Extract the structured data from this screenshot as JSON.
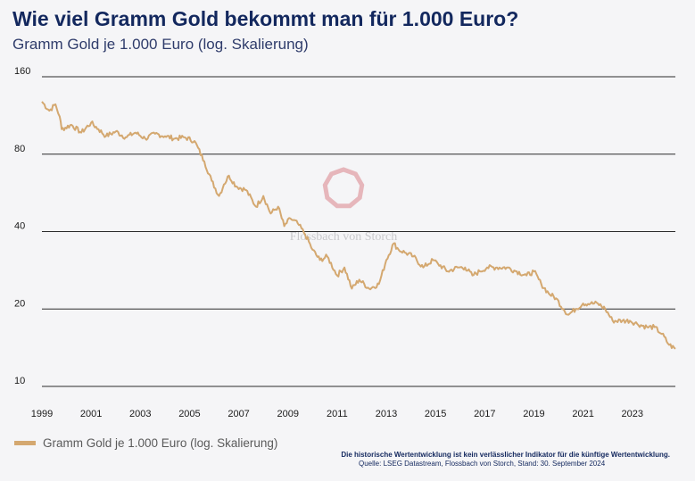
{
  "header": {
    "title": "Wie viel Gramm Gold bekommt man für 1.000 Euro?",
    "subtitle": "Gramm Gold je 1.000 Euro (log. Skalierung)"
  },
  "legend": {
    "label": "Gramm Gold je 1.000 Euro (log. Skalierung)",
    "color": "#d4a870"
  },
  "footer": {
    "note": "Die historische Wertentwicklung ist kein verlässlicher Indikator für die künftige Wertentwicklung.",
    "source": "Quelle: LSEG Datastream, Flossbach von Storch, Stand: 30. September 2024"
  },
  "watermark": {
    "text": "Flossbach von Storch",
    "logo_color": "#e3aab0"
  },
  "chart_data": {
    "type": "line",
    "title": "Wie viel Gramm Gold bekommt man für 1.000 Euro?",
    "subtitle": "Gramm Gold je 1.000 Euro (log. Skalierung)",
    "y_scale": "log",
    "ylim": [
      10,
      160
    ],
    "yticks": [
      10,
      20,
      40,
      80,
      160
    ],
    "xlim": [
      1999.0,
      2024.75
    ],
    "xticks": [
      1999,
      2001,
      2003,
      2005,
      2007,
      2009,
      2011,
      2013,
      2015,
      2017,
      2019,
      2021,
      2023
    ],
    "grid": "horizontal",
    "legend_position": "bottom-left",
    "series": [
      {
        "name": "Gramm Gold je 1.000 Euro (log. Skalierung)",
        "color": "#d4a870",
        "x": [
          1999.0,
          1999.3,
          1999.55,
          1999.72,
          1999.8,
          2000.2,
          2000.6,
          2001.0,
          2001.3,
          2001.6,
          2002.0,
          2002.4,
          2002.8,
          2003.2,
          2003.6,
          2004.0,
          2004.4,
          2004.8,
          2005.2,
          2005.6,
          2005.9,
          2006.2,
          2006.4,
          2006.6,
          2006.9,
          2007.3,
          2007.7,
          2008.0,
          2008.3,
          2008.6,
          2008.85,
          2009.1,
          2009.4,
          2009.7,
          2010.0,
          2010.3,
          2010.6,
          2011.0,
          2011.3,
          2011.6,
          2011.9,
          2012.3,
          2012.7,
          2013.0,
          2013.3,
          2013.5,
          2013.8,
          2014.1,
          2014.5,
          2014.9,
          2015.1,
          2015.5,
          2015.9,
          2016.2,
          2016.5,
          2016.8,
          2017.1,
          2017.5,
          2017.9,
          2018.3,
          2018.7,
          2019.0,
          2019.3,
          2019.6,
          2019.9,
          2020.2,
          2020.4,
          2020.7,
          2021.0,
          2021.3,
          2021.6,
          2021.9,
          2022.2,
          2022.6,
          2022.9,
          2023.2,
          2023.6,
          2023.9,
          2024.2,
          2024.5,
          2024.75
        ],
        "values": [
          128,
          118,
          125,
          112,
          100,
          104,
          97,
          106,
          100,
          94,
          98,
          93,
          97,
          92,
          96,
          94,
          92,
          93,
          90,
          75,
          63,
          55,
          61,
          66,
          60,
          58,
          50,
          55,
          47,
          50,
          42,
          45,
          43,
          39,
          34,
          31,
          32,
          27,
          29,
          24,
          26,
          24,
          25,
          31,
          36,
          34,
          33,
          32,
          29,
          31,
          30,
          28,
          29,
          29,
          27,
          28,
          29,
          29,
          29,
          28,
          27,
          28,
          25,
          23,
          22,
          20,
          19,
          20,
          21,
          21,
          21,
          20,
          18,
          18,
          18,
          17.5,
          17,
          17,
          16,
          14.5,
          14
        ]
      }
    ]
  }
}
